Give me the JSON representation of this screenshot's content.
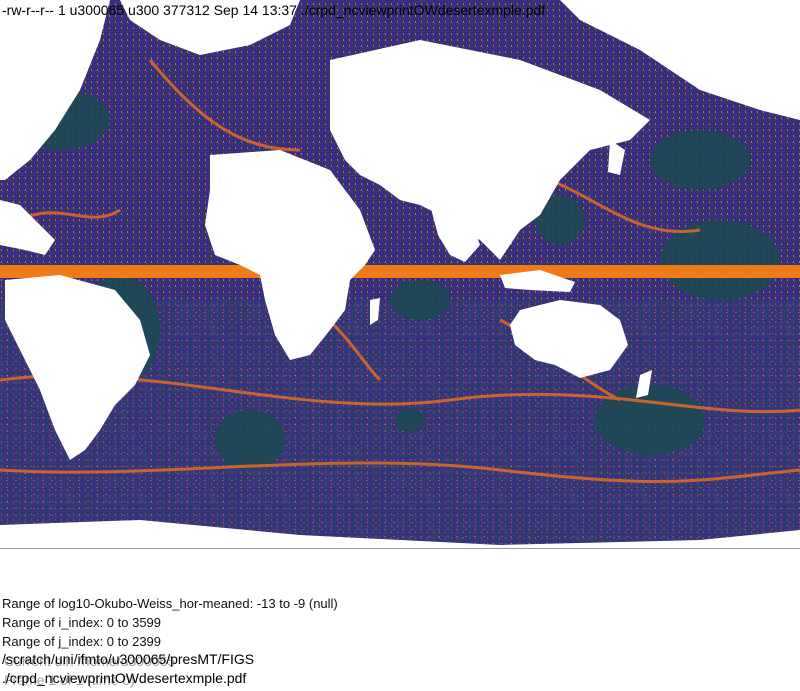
{
  "header": {
    "listing": "-rw-r--r-- 1 u300065 u300 377312 Sep 14 13:37 ./crpd_ncviewprintOWdesertexmple.pdf"
  },
  "map": {
    "colors": {
      "land": "#ffffff",
      "ocean_low": "#1b4a52",
      "ocean_mid": "#3a2a8a",
      "ocean_violet": "#7a1aa0",
      "ocean_high": "#e56a20",
      "equator_band": "#f07a18"
    }
  },
  "info": {
    "lines": [
      "Range of log10-Okubo-Weiss_hor-meaned: -13 to -9 (null)",
      "Range of i_index: 0 to 3599",
      "Range of j_index: 0 to 2399"
    ],
    "path_line1": "/scratch/uni/ifmto/u300065/presMT/FIGS",
    "path_line1_ghost": "Current dir: /home/u300065",
    "path_line2": "./crpd_ncviewprintOWdesertexmple.pdf",
    "path_line2_ghost": "Frame 1 of 1 (time 0)"
  }
}
